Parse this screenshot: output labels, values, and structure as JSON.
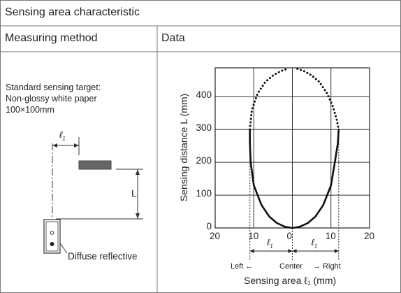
{
  "header": {
    "title": "Sensing area characteristic"
  },
  "columns": {
    "method": "Measuring method",
    "data": "Data"
  },
  "method_panel": {
    "line1": "Standard sensing target:",
    "line2": "Non-glossy white paper",
    "line3": "100×100mm",
    "l1_label": "ℓ",
    "l1_sub": "1",
    "L_label": "L",
    "sensor_label": "Diffuse reflective"
  },
  "chart_data": {
    "type": "line",
    "title": "",
    "xlabel": "Sensing area ℓ₁ (mm)",
    "ylabel": "Sensing distance L (mm)",
    "xlim": [
      -20,
      20
    ],
    "ylim": [
      0,
      500
    ],
    "grid": true,
    "x_ticks": [
      "20",
      "10",
      "0",
      "10",
      "20"
    ],
    "y_ticks": [
      "0",
      "100",
      "200",
      "300",
      "400"
    ],
    "direction_labels": {
      "left": "Left ←",
      "center": "Center",
      "right": "→ Right"
    },
    "l1_marker": {
      "symbol": "ℓ",
      "sub": "1"
    },
    "series": [
      {
        "style": "solid",
        "x": [
          0,
          -2,
          -4,
          -6,
          -8,
          -10,
          -10.8,
          -11.0,
          -11.0
        ],
        "y": [
          0,
          4,
          15,
          35,
          70,
          130,
          200,
          260,
          300
        ]
      },
      {
        "style": "solid",
        "x": [
          0,
          2,
          4,
          6,
          8,
          10,
          11.0,
          11.8,
          12.0
        ],
        "y": [
          0,
          4,
          15,
          35,
          70,
          130,
          200,
          260,
          300
        ]
      },
      {
        "style": "dotted",
        "x": [
          -11.0,
          -10.5,
          -9.0,
          -7.0,
          -5.0,
          -3.0,
          -1.3
        ],
        "y": [
          300,
          360,
          410,
          445,
          465,
          478,
          485
        ]
      },
      {
        "style": "dotted",
        "x": [
          1.3,
          3.0,
          5.0,
          7.0,
          9.0,
          10.5,
          11.5,
          12.0
        ],
        "y": [
          485,
          478,
          465,
          445,
          410,
          370,
          330,
          300
        ]
      }
    ]
  }
}
